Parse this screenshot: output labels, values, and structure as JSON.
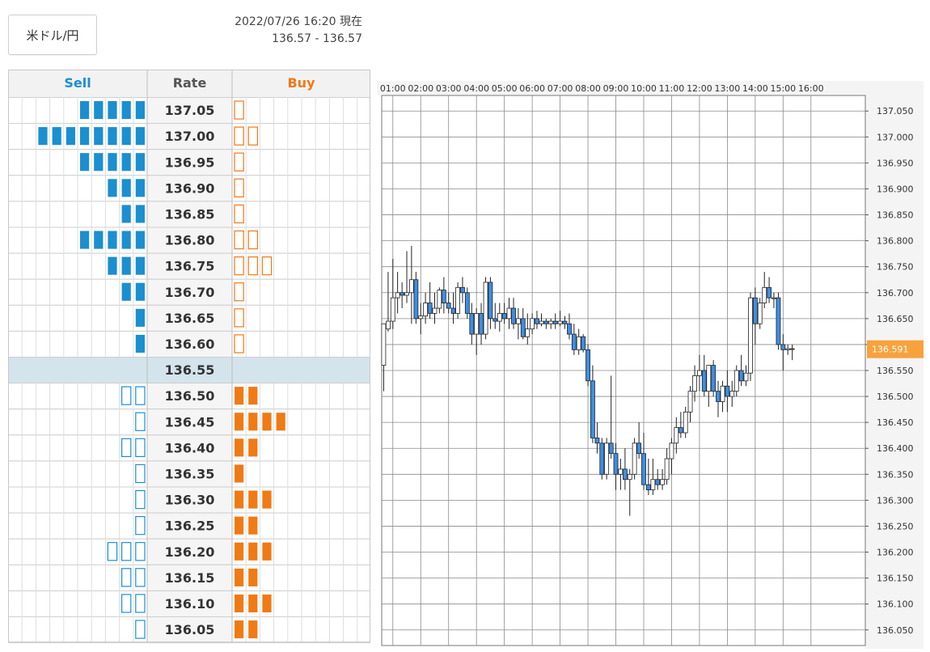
{
  "pair_button": "米ドル/円",
  "timestamp": "2022/07/26 16:20 現在",
  "quote": "136.57 - 136.57",
  "book": {
    "headers": {
      "sell": "Sell",
      "rate": "Rate",
      "buy": "Buy"
    },
    "colors": {
      "sell": "#1b8fd0",
      "buy": "#f07a14",
      "current_row": "#d3e4ec"
    },
    "current_rate": "136.55",
    "rows": [
      {
        "rate": "137.05",
        "sell": 5,
        "sell_style": "solid",
        "buy": 1,
        "buy_style": "outline"
      },
      {
        "rate": "137.00",
        "sell": 8,
        "sell_style": "solid",
        "buy": 2,
        "buy_style": "outline"
      },
      {
        "rate": "136.95",
        "sell": 5,
        "sell_style": "solid",
        "buy": 1,
        "buy_style": "outline"
      },
      {
        "rate": "136.90",
        "sell": 3,
        "sell_style": "solid",
        "buy": 1,
        "buy_style": "outline"
      },
      {
        "rate": "136.85",
        "sell": 2,
        "sell_style": "solid",
        "buy": 1,
        "buy_style": "outline"
      },
      {
        "rate": "136.80",
        "sell": 5,
        "sell_style": "solid",
        "buy": 2,
        "buy_style": "outline"
      },
      {
        "rate": "136.75",
        "sell": 3,
        "sell_style": "solid",
        "buy": 3,
        "buy_style": "outline"
      },
      {
        "rate": "136.70",
        "sell": 2,
        "sell_style": "solid",
        "buy": 1,
        "buy_style": "outline"
      },
      {
        "rate": "136.65",
        "sell": 1,
        "sell_style": "solid",
        "buy": 1,
        "buy_style": "outline"
      },
      {
        "rate": "136.60",
        "sell": 1,
        "sell_style": "solid",
        "buy": 1,
        "buy_style": "outline"
      },
      {
        "rate": "136.55",
        "sell": 0,
        "sell_style": "solid",
        "buy": 0,
        "buy_style": "solid"
      },
      {
        "rate": "136.50",
        "sell": 2,
        "sell_style": "outline",
        "buy": 2,
        "buy_style": "solid"
      },
      {
        "rate": "136.45",
        "sell": 1,
        "sell_style": "outline",
        "buy": 4,
        "buy_style": "solid"
      },
      {
        "rate": "136.40",
        "sell": 2,
        "sell_style": "outline",
        "buy": 2,
        "buy_style": "solid"
      },
      {
        "rate": "136.35",
        "sell": 1,
        "sell_style": "outline",
        "buy": 1,
        "buy_style": "solid"
      },
      {
        "rate": "136.30",
        "sell": 1,
        "sell_style": "outline",
        "buy": 3,
        "buy_style": "solid"
      },
      {
        "rate": "136.25",
        "sell": 1,
        "sell_style": "outline",
        "buy": 2,
        "buy_style": "solid"
      },
      {
        "rate": "136.20",
        "sell": 3,
        "sell_style": "outline",
        "buy": 3,
        "buy_style": "solid"
      },
      {
        "rate": "136.15",
        "sell": 2,
        "sell_style": "outline",
        "buy": 2,
        "buy_style": "solid"
      },
      {
        "rate": "136.10",
        "sell": 2,
        "sell_style": "outline",
        "buy": 3,
        "buy_style": "solid"
      },
      {
        "rate": "136.05",
        "sell": 1,
        "sell_style": "outline",
        "buy": 2,
        "buy_style": "solid"
      }
    ]
  },
  "chart_data": {
    "type": "candlestick",
    "x_ticks": [
      "01:00",
      "02:00",
      "03:00",
      "04:00",
      "05:00",
      "06:00",
      "07:00",
      "08:00",
      "09:00",
      "10:00",
      "11:00",
      "12:00",
      "13:00",
      "14:00",
      "15:00",
      "16:00"
    ],
    "y_ticks": [
      "137.050",
      "137.000",
      "136.950",
      "136.900",
      "136.850",
      "136.800",
      "136.750",
      "136.700",
      "136.650",
      "136.600",
      "136.550",
      "136.500",
      "136.450",
      "136.400",
      "136.350",
      "136.300",
      "136.250",
      "136.200",
      "136.150",
      "136.100",
      "136.050"
    ],
    "ylim": [
      136.02,
      137.08
    ],
    "x_range_hours": [
      -0.4,
      16.95
    ],
    "current_price": 136.591,
    "current_price_label": "136.591",
    "colors": {
      "down": "#3d8ee3",
      "up": "#ffffff",
      "price_tag": "#f7a23c"
    },
    "candles": [
      {
        "t": -0.33,
        "o": 136.56,
        "h": 136.64,
        "l": 136.51,
        "c": 136.64
      },
      {
        "t": -0.17,
        "o": 136.63,
        "h": 136.74,
        "l": 136.625,
        "c": 136.645
      },
      {
        "t": 0.0,
        "o": 136.645,
        "h": 136.765,
        "l": 136.63,
        "c": 136.69
      },
      {
        "t": 0.17,
        "o": 136.69,
        "h": 136.74,
        "l": 136.66,
        "c": 136.7
      },
      {
        "t": 0.33,
        "o": 136.7,
        "h": 136.72,
        "l": 136.67,
        "c": 136.695
      },
      {
        "t": 0.5,
        "o": 136.695,
        "h": 136.78,
        "l": 136.68,
        "c": 136.7
      },
      {
        "t": 0.67,
        "o": 136.7,
        "h": 136.79,
        "l": 136.64,
        "c": 136.725
      },
      {
        "t": 0.83,
        "o": 136.725,
        "h": 136.74,
        "l": 136.64,
        "c": 136.65
      },
      {
        "t": 1.0,
        "o": 136.65,
        "h": 136.68,
        "l": 136.62,
        "c": 136.655
      },
      {
        "t": 1.17,
        "o": 136.655,
        "h": 136.7,
        "l": 136.64,
        "c": 136.68
      },
      {
        "t": 1.33,
        "o": 136.68,
        "h": 136.72,
        "l": 136.65,
        "c": 136.66
      },
      {
        "t": 1.5,
        "o": 136.66,
        "h": 136.7,
        "l": 136.64,
        "c": 136.67
      },
      {
        "t": 1.67,
        "o": 136.67,
        "h": 136.71,
        "l": 136.66,
        "c": 136.705
      },
      {
        "t": 1.83,
        "o": 136.705,
        "h": 136.73,
        "l": 136.66,
        "c": 136.68
      },
      {
        "t": 2.0,
        "o": 136.68,
        "h": 136.7,
        "l": 136.66,
        "c": 136.67
      },
      {
        "t": 2.17,
        "o": 136.67,
        "h": 136.7,
        "l": 136.64,
        "c": 136.66
      },
      {
        "t": 2.33,
        "o": 136.66,
        "h": 136.72,
        "l": 136.65,
        "c": 136.71
      },
      {
        "t": 2.5,
        "o": 136.71,
        "h": 136.73,
        "l": 136.68,
        "c": 136.7
      },
      {
        "t": 2.67,
        "o": 136.7,
        "h": 136.71,
        "l": 136.65,
        "c": 136.66
      },
      {
        "t": 2.83,
        "o": 136.66,
        "h": 136.68,
        "l": 136.6,
        "c": 136.62
      },
      {
        "t": 3.0,
        "o": 136.62,
        "h": 136.67,
        "l": 136.58,
        "c": 136.66
      },
      {
        "t": 3.17,
        "o": 136.66,
        "h": 136.68,
        "l": 136.6,
        "c": 136.62
      },
      {
        "t": 3.33,
        "o": 136.62,
        "h": 136.73,
        "l": 136.61,
        "c": 136.72
      },
      {
        "t": 3.5,
        "o": 136.72,
        "h": 136.73,
        "l": 136.63,
        "c": 136.65
      },
      {
        "t": 3.67,
        "o": 136.65,
        "h": 136.68,
        "l": 136.63,
        "c": 136.645
      },
      {
        "t": 3.83,
        "o": 136.645,
        "h": 136.68,
        "l": 136.625,
        "c": 136.66
      },
      {
        "t": 4.0,
        "o": 136.66,
        "h": 136.68,
        "l": 136.64,
        "c": 136.65
      },
      {
        "t": 4.17,
        "o": 136.65,
        "h": 136.69,
        "l": 136.63,
        "c": 136.67
      },
      {
        "t": 4.33,
        "o": 136.67,
        "h": 136.69,
        "l": 136.63,
        "c": 136.64
      },
      {
        "t": 4.5,
        "o": 136.64,
        "h": 136.67,
        "l": 136.61,
        "c": 136.65
      },
      {
        "t": 4.67,
        "o": 136.65,
        "h": 136.67,
        "l": 136.61,
        "c": 136.615
      },
      {
        "t": 4.83,
        "o": 136.615,
        "h": 136.66,
        "l": 136.6,
        "c": 136.63
      },
      {
        "t": 5.0,
        "o": 136.63,
        "h": 136.66,
        "l": 136.62,
        "c": 136.65
      },
      {
        "t": 5.17,
        "o": 136.65,
        "h": 136.665,
        "l": 136.63,
        "c": 136.64
      },
      {
        "t": 5.33,
        "o": 136.64,
        "h": 136.66,
        "l": 136.635,
        "c": 136.645
      },
      {
        "t": 5.5,
        "o": 136.645,
        "h": 136.65,
        "l": 136.63,
        "c": 136.64
      },
      {
        "t": 5.67,
        "o": 136.64,
        "h": 136.65,
        "l": 136.63,
        "c": 136.645
      },
      {
        "t": 5.83,
        "o": 136.645,
        "h": 136.66,
        "l": 136.63,
        "c": 136.64
      },
      {
        "t": 6.0,
        "o": 136.64,
        "h": 136.665,
        "l": 136.635,
        "c": 136.645
      },
      {
        "t": 6.17,
        "o": 136.645,
        "h": 136.655,
        "l": 136.63,
        "c": 136.64
      },
      {
        "t": 6.33,
        "o": 136.64,
        "h": 136.66,
        "l": 136.61,
        "c": 136.62
      },
      {
        "t": 6.5,
        "o": 136.62,
        "h": 136.64,
        "l": 136.58,
        "c": 136.59
      },
      {
        "t": 6.67,
        "o": 136.59,
        "h": 136.63,
        "l": 136.58,
        "c": 136.615
      },
      {
        "t": 6.83,
        "o": 136.615,
        "h": 136.62,
        "l": 136.585,
        "c": 136.59
      },
      {
        "t": 7.0,
        "o": 136.59,
        "h": 136.6,
        "l": 136.52,
        "c": 136.53
      },
      {
        "t": 7.17,
        "o": 136.53,
        "h": 136.56,
        "l": 136.41,
        "c": 136.42
      },
      {
        "t": 7.33,
        "o": 136.42,
        "h": 136.45,
        "l": 136.39,
        "c": 136.41
      },
      {
        "t": 7.5,
        "o": 136.41,
        "h": 136.42,
        "l": 136.34,
        "c": 136.35
      },
      {
        "t": 7.67,
        "o": 136.35,
        "h": 136.42,
        "l": 136.34,
        "c": 136.41
      },
      {
        "t": 7.83,
        "o": 136.41,
        "h": 136.54,
        "l": 136.38,
        "c": 136.39
      },
      {
        "t": 8.0,
        "o": 136.39,
        "h": 136.41,
        "l": 136.32,
        "c": 136.35
      },
      {
        "t": 8.17,
        "o": 136.35,
        "h": 136.38,
        "l": 136.32,
        "c": 136.36
      },
      {
        "t": 8.33,
        "o": 136.36,
        "h": 136.4,
        "l": 136.32,
        "c": 136.34
      },
      {
        "t": 8.5,
        "o": 136.34,
        "h": 136.36,
        "l": 136.27,
        "c": 136.35
      },
      {
        "t": 8.67,
        "o": 136.35,
        "h": 136.42,
        "l": 136.34,
        "c": 136.41
      },
      {
        "t": 8.83,
        "o": 136.41,
        "h": 136.45,
        "l": 136.38,
        "c": 136.39
      },
      {
        "t": 9.0,
        "o": 136.39,
        "h": 136.43,
        "l": 136.32,
        "c": 136.33
      },
      {
        "t": 9.17,
        "o": 136.33,
        "h": 136.38,
        "l": 136.31,
        "c": 136.32
      },
      {
        "t": 9.33,
        "o": 136.32,
        "h": 136.38,
        "l": 136.31,
        "c": 136.34
      },
      {
        "t": 9.5,
        "o": 136.34,
        "h": 136.36,
        "l": 136.32,
        "c": 136.33
      },
      {
        "t": 9.67,
        "o": 136.33,
        "h": 136.36,
        "l": 136.32,
        "c": 136.34
      },
      {
        "t": 9.83,
        "o": 136.34,
        "h": 136.4,
        "l": 136.33,
        "c": 136.38
      },
      {
        "t": 10.0,
        "o": 136.38,
        "h": 136.42,
        "l": 136.35,
        "c": 136.41
      },
      {
        "t": 10.17,
        "o": 136.41,
        "h": 136.46,
        "l": 136.39,
        "c": 136.44
      },
      {
        "t": 10.33,
        "o": 136.44,
        "h": 136.47,
        "l": 136.42,
        "c": 136.43
      },
      {
        "t": 10.5,
        "o": 136.43,
        "h": 136.48,
        "l": 136.42,
        "c": 136.47
      },
      {
        "t": 10.67,
        "o": 136.47,
        "h": 136.52,
        "l": 136.45,
        "c": 136.51
      },
      {
        "t": 10.83,
        "o": 136.51,
        "h": 136.56,
        "l": 136.49,
        "c": 136.54
      },
      {
        "t": 11.0,
        "o": 136.54,
        "h": 136.58,
        "l": 136.51,
        "c": 136.55
      },
      {
        "t": 11.17,
        "o": 136.55,
        "h": 136.58,
        "l": 136.5,
        "c": 136.51
      },
      {
        "t": 11.33,
        "o": 136.51,
        "h": 136.56,
        "l": 136.48,
        "c": 136.56
      },
      {
        "t": 11.5,
        "o": 136.56,
        "h": 136.57,
        "l": 136.5,
        "c": 136.51
      },
      {
        "t": 11.67,
        "o": 136.51,
        "h": 136.53,
        "l": 136.46,
        "c": 136.49
      },
      {
        "t": 11.83,
        "o": 136.49,
        "h": 136.53,
        "l": 136.47,
        "c": 136.52
      },
      {
        "t": 12.0,
        "o": 136.52,
        "h": 136.55,
        "l": 136.47,
        "c": 136.5
      },
      {
        "t": 12.17,
        "o": 136.5,
        "h": 136.53,
        "l": 136.48,
        "c": 136.51
      },
      {
        "t": 12.33,
        "o": 136.51,
        "h": 136.56,
        "l": 136.5,
        "c": 136.55
      },
      {
        "t": 12.5,
        "o": 136.55,
        "h": 136.58,
        "l": 136.52,
        "c": 136.53
      },
      {
        "t": 12.67,
        "o": 136.53,
        "h": 136.56,
        "l": 136.52,
        "c": 136.545
      },
      {
        "t": 12.83,
        "o": 136.545,
        "h": 136.7,
        "l": 136.53,
        "c": 136.69
      },
      {
        "t": 13.0,
        "o": 136.69,
        "h": 136.71,
        "l": 136.6,
        "c": 136.64
      },
      {
        "t": 13.17,
        "o": 136.64,
        "h": 136.69,
        "l": 136.63,
        "c": 136.68
      },
      {
        "t": 13.33,
        "o": 136.68,
        "h": 136.74,
        "l": 136.67,
        "c": 136.71
      },
      {
        "t": 13.5,
        "o": 136.71,
        "h": 136.73,
        "l": 136.68,
        "c": 136.69
      },
      {
        "t": 13.67,
        "o": 136.69,
        "h": 136.7,
        "l": 136.67,
        "c": 136.69
      },
      {
        "t": 13.83,
        "o": 136.69,
        "h": 136.7,
        "l": 136.59,
        "c": 136.6
      },
      {
        "t": 14.0,
        "o": 136.6,
        "h": 136.62,
        "l": 136.55,
        "c": 136.59
      },
      {
        "t": 14.17,
        "o": 136.59,
        "h": 136.6,
        "l": 136.58,
        "c": 136.592
      },
      {
        "t": 14.33,
        "o": 136.592,
        "h": 136.6,
        "l": 136.57,
        "c": 136.591
      }
    ]
  }
}
